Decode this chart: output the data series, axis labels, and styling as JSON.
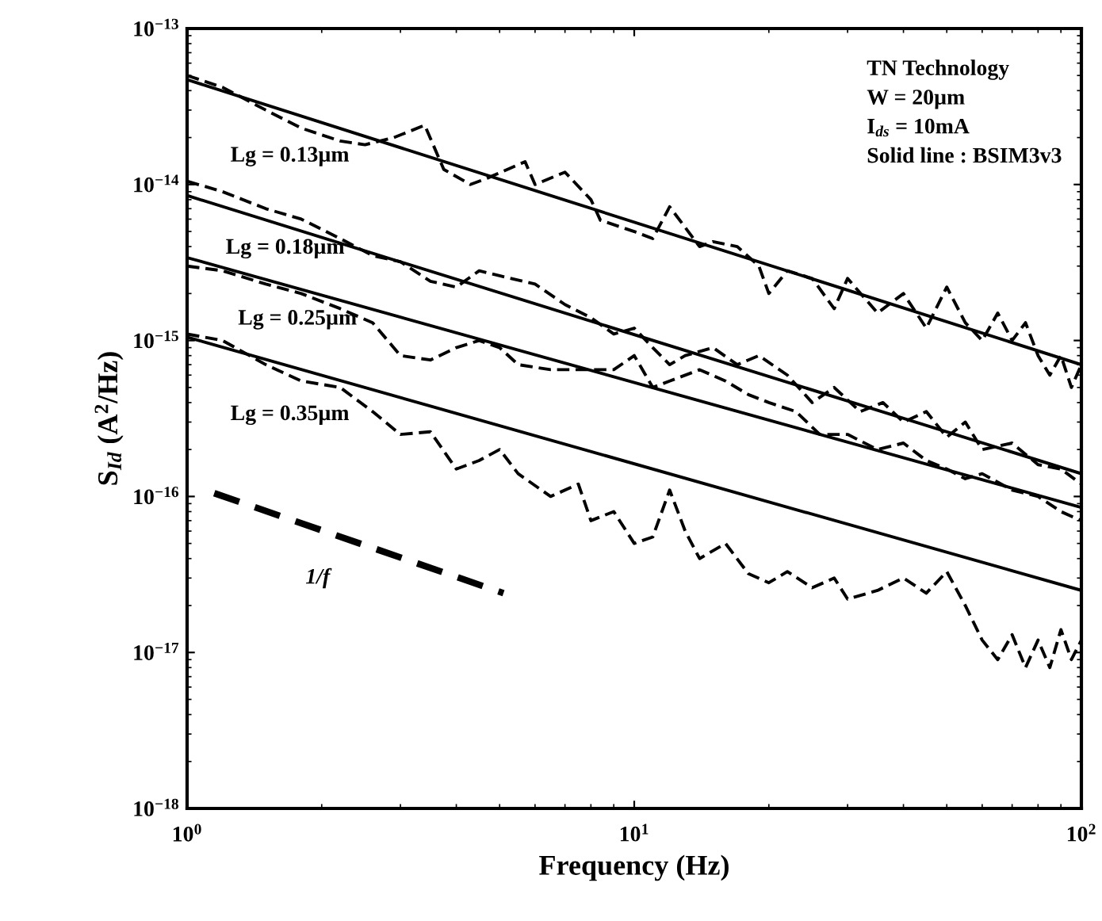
{
  "chart_data": {
    "type": "line",
    "xlabel": "Frequency (Hz)",
    "ylabel": "S$_{Id}$ (A$^{2}$/Hz)",
    "log": "xy",
    "xlim": [
      1,
      100
    ],
    "xticks": [
      {
        "value": 1,
        "label": "10$^{0}$"
      },
      {
        "value": 10,
        "label": "10$^{1}$"
      },
      {
        "value": 100,
        "label": "10$^{2}$"
      }
    ],
    "ylim": [
      1e-18,
      1e-13
    ],
    "yticks": [
      {
        "value": 1e-18,
        "label": "10$^{−18}$"
      },
      {
        "value": 1e-17,
        "label": "10$^{−17}$"
      },
      {
        "value": 1e-16,
        "label": "10$^{−16}$"
      },
      {
        "value": 1e-15,
        "label": "10$^{−15}$"
      },
      {
        "value": 1e-14,
        "label": "10$^{−14}$"
      },
      {
        "value": 1e-13,
        "label": "10$^{−13}$"
      }
    ],
    "series": [
      {
        "type": "line",
        "name": "Lg = 0.13µm",
        "line_style": "dashed",
        "color": "#000000",
        "x": [
          1.0,
          1.2,
          1.5,
          1.8,
          2.2,
          2.5,
          2.9,
          3.4,
          3.75,
          4.3,
          4.7,
          5.7,
          6.0,
          7.0,
          8.0,
          8.4,
          10,
          11,
          12,
          14,
          15,
          17,
          19,
          20,
          22,
          25,
          28,
          30,
          35,
          40,
          45,
          50,
          55,
          60,
          65,
          70,
          75,
          80,
          85,
          90,
          95,
          100
        ],
        "values": [
          5e-14,
          4.2e-14,
          3e-14,
          2.3e-14,
          1.9e-14,
          1.8e-14,
          2e-14,
          2.4e-14,
          1.25e-14,
          1e-14,
          1.1e-14,
          1.4e-14,
          1e-14,
          1.2e-14,
          8e-15,
          5.9e-15,
          5e-15,
          4.5e-15,
          7.2e-15,
          4e-15,
          4.3e-15,
          4e-15,
          3e-15,
          2e-15,
          2.8e-15,
          2.5e-15,
          1.6e-15,
          2.5e-15,
          1.5e-15,
          2e-15,
          1.2e-15,
          2.2e-15,
          1.3e-15,
          1e-15,
          1.5e-15,
          1e-15,
          1.3e-15,
          8e-16,
          6e-16,
          8e-16,
          5e-16,
          7e-16
        ]
      },
      {
        "type": "line",
        "name": "Lg = 0.18µm",
        "line_style": "dashed",
        "color": "#000000",
        "x": [
          1.0,
          1.2,
          1.5,
          1.8,
          2.2,
          2.6,
          3.0,
          3.5,
          4.0,
          4.5,
          5.0,
          6.0,
          7.0,
          8.0,
          9.0,
          10,
          11,
          12,
          13,
          15,
          17,
          19,
          22,
          25,
          28,
          32,
          36,
          40,
          45,
          50,
          55,
          60,
          70,
          80,
          90,
          100
        ],
        "values": [
          1.05e-14,
          9e-15,
          7e-15,
          6e-15,
          4.5e-15,
          3.5e-15,
          3.2e-15,
          2.4e-15,
          2.2e-15,
          2.8e-15,
          2.6e-15,
          2.3e-15,
          1.7e-15,
          1.4e-15,
          1.1e-15,
          1.2e-15,
          9e-16,
          7e-16,
          8e-16,
          9e-16,
          7e-16,
          8e-16,
          6e-16,
          4e-16,
          5e-16,
          3.5e-16,
          4e-16,
          3e-16,
          3.5e-16,
          2.4e-16,
          3e-16,
          2e-16,
          2.2e-16,
          1.6e-16,
          1.5e-16,
          1.2e-16
        ]
      },
      {
        "type": "line",
        "name": "Lg = 0.25µm",
        "line_style": "dashed",
        "color": "#000000",
        "x": [
          1.0,
          1.2,
          1.5,
          1.8,
          2.2,
          2.6,
          3.0,
          3.5,
          4.0,
          4.5,
          5.0,
          5.5,
          6.5,
          7.5,
          9,
          10,
          11,
          12,
          14,
          16,
          18,
          20,
          23,
          26,
          30,
          35,
          40,
          45,
          50,
          55,
          60,
          70,
          80,
          90,
          100
        ],
        "values": [
          3e-15,
          2.8e-15,
          2.3e-15,
          2e-15,
          1.6e-15,
          1.3e-15,
          8e-16,
          7.5e-16,
          9e-16,
          1e-15,
          9e-16,
          7e-16,
          6.5e-16,
          6.5e-16,
          6.5e-16,
          8e-16,
          5e-16,
          5.5e-16,
          6.5e-16,
          5.5e-16,
          4.5e-16,
          4e-16,
          3.5e-16,
          2.5e-16,
          2.5e-16,
          2e-16,
          2.2e-16,
          1.7e-16,
          1.5e-16,
          1.3e-16,
          1.4e-16,
          1.1e-16,
          1e-16,
          8e-17,
          7e-17
        ]
      },
      {
        "type": "line",
        "name": "Lg = 0.35µm",
        "line_style": "dashed",
        "color": "#000000",
        "x": [
          1.0,
          1.2,
          1.5,
          1.8,
          2.2,
          2.6,
          3.0,
          3.5,
          4.0,
          4.5,
          5.0,
          5.5,
          6.5,
          7.5,
          8.0,
          9.0,
          10,
          11,
          12,
          13,
          14,
          16,
          18,
          20,
          22,
          25,
          28,
          30,
          35,
          40,
          45,
          50,
          55,
          60,
          65,
          70,
          75,
          80,
          85,
          90,
          95,
          100
        ],
        "values": [
          1.1e-15,
          1e-15,
          7e-16,
          5.5e-16,
          5e-16,
          3.5e-16,
          2.5e-16,
          2.6e-16,
          1.5e-16,
          1.7e-16,
          2e-16,
          1.4e-16,
          1e-16,
          1.2e-16,
          7e-17,
          8e-17,
          5e-17,
          5.5e-17,
          1.1e-16,
          6e-17,
          4e-17,
          5e-17,
          3.2e-17,
          2.8e-17,
          3.3e-17,
          2.6e-17,
          3e-17,
          2.2e-17,
          2.5e-17,
          3e-17,
          2.4e-17,
          3.3e-17,
          2e-17,
          1.2e-17,
          9e-18,
          1.3e-17,
          8e-18,
          1.2e-17,
          8e-18,
          1.4e-17,
          9e-18,
          1.2e-17
        ]
      },
      {
        "type": "line",
        "line_style": "solid",
        "color": "#000000",
        "x": [
          1,
          100
        ],
        "values": [
          4.7e-14,
          7e-16
        ]
      },
      {
        "type": "line",
        "line_style": "solid",
        "color": "#000000",
        "x": [
          1,
          100
        ],
        "values": [
          8.5e-15,
          1.4e-16
        ]
      },
      {
        "type": "line",
        "line_style": "solid",
        "color": "#000000",
        "x": [
          1,
          100
        ],
        "values": [
          3.4e-15,
          8.5e-17
        ]
      },
      {
        "type": "line",
        "line_style": "solid",
        "color": "#000000",
        "x": [
          1,
          100
        ],
        "values": [
          1.05e-15,
          2.5e-17
        ]
      },
      {
        "type": "line",
        "name": "1/f",
        "line_style": "dashed",
        "color": "#000000",
        "x": [
          1.15,
          5.1
        ],
        "values": [
          1.05e-16,
          2.4e-17
        ]
      }
    ],
    "annotations": [
      "TN Technology",
      "W = 20µm",
      "I$_{ds}$ = 10mA",
      "Solid line : BSIM3v3"
    ]
  }
}
